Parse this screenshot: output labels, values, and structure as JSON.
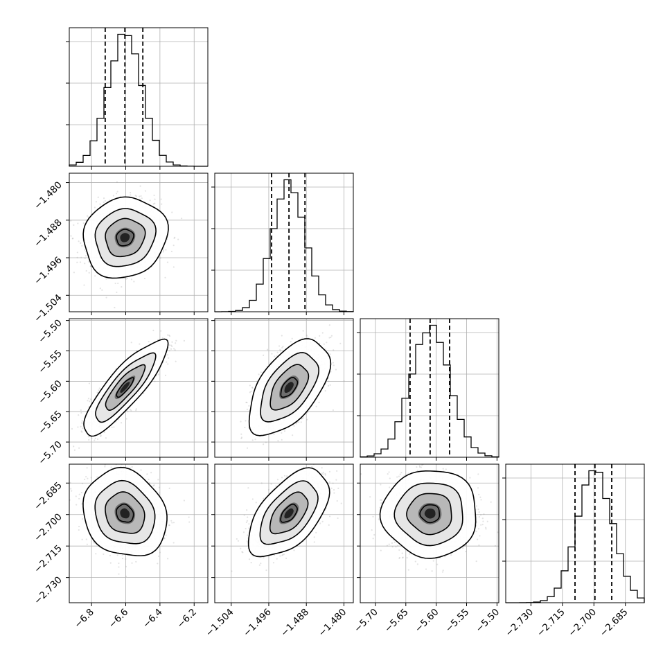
{
  "chart_data": {
    "type": "corner",
    "grid": true,
    "parameters": [
      {
        "range": [
          -6.93,
          -6.12
        ],
        "ticks": [
          -6.8,
          -6.6,
          -6.4,
          -6.2
        ],
        "tick_labels": [
          "−6.8",
          "−6.6",
          "−6.4",
          "−6.2"
        ],
        "quantiles": [
          -6.72,
          -6.605,
          -6.5
        ],
        "mean": -6.605,
        "sd": 0.1
      },
      {
        "range": [
          -1.5075,
          -1.478
        ],
        "ticks": [
          -1.504,
          -1.496,
          -1.488,
          -1.48
        ],
        "tick_labels": [
          "−1.504",
          "−1.496",
          "−1.488",
          "−1.480"
        ],
        "quantiles": [
          -1.4954,
          -1.4917,
          -1.4883
        ],
        "mean": -1.4917,
        "sd": 0.0035
      },
      {
        "range": [
          -5.725,
          -5.497
        ],
        "ticks": [
          -5.7,
          -5.65,
          -5.6,
          -5.55,
          -5.5
        ],
        "tick_labels": [
          "−5.70",
          "−5.65",
          "−5.60",
          "−5.55",
          "−5.50"
        ],
        "quantiles": [
          -5.643,
          -5.61,
          -5.578
        ],
        "mean": -5.61,
        "sd": 0.032
      },
      {
        "range": [
          -2.742,
          -2.676
        ],
        "ticks": [
          -2.73,
          -2.715,
          -2.7,
          -2.685
        ],
        "tick_labels": [
          "−2.730",
          "−2.715",
          "−2.700",
          "−2.685"
        ],
        "quantiles": [
          -2.709,
          -2.6995,
          -2.6915
        ],
        "mean": -2.6995,
        "sd": 0.0085
      }
    ],
    "correlations": {
      "1-0": 0.1,
      "2-0": 0.85,
      "2-1": 0.55,
      "3-0": -0.15,
      "3-1": 0.55,
      "3-2": 0.0
    }
  }
}
